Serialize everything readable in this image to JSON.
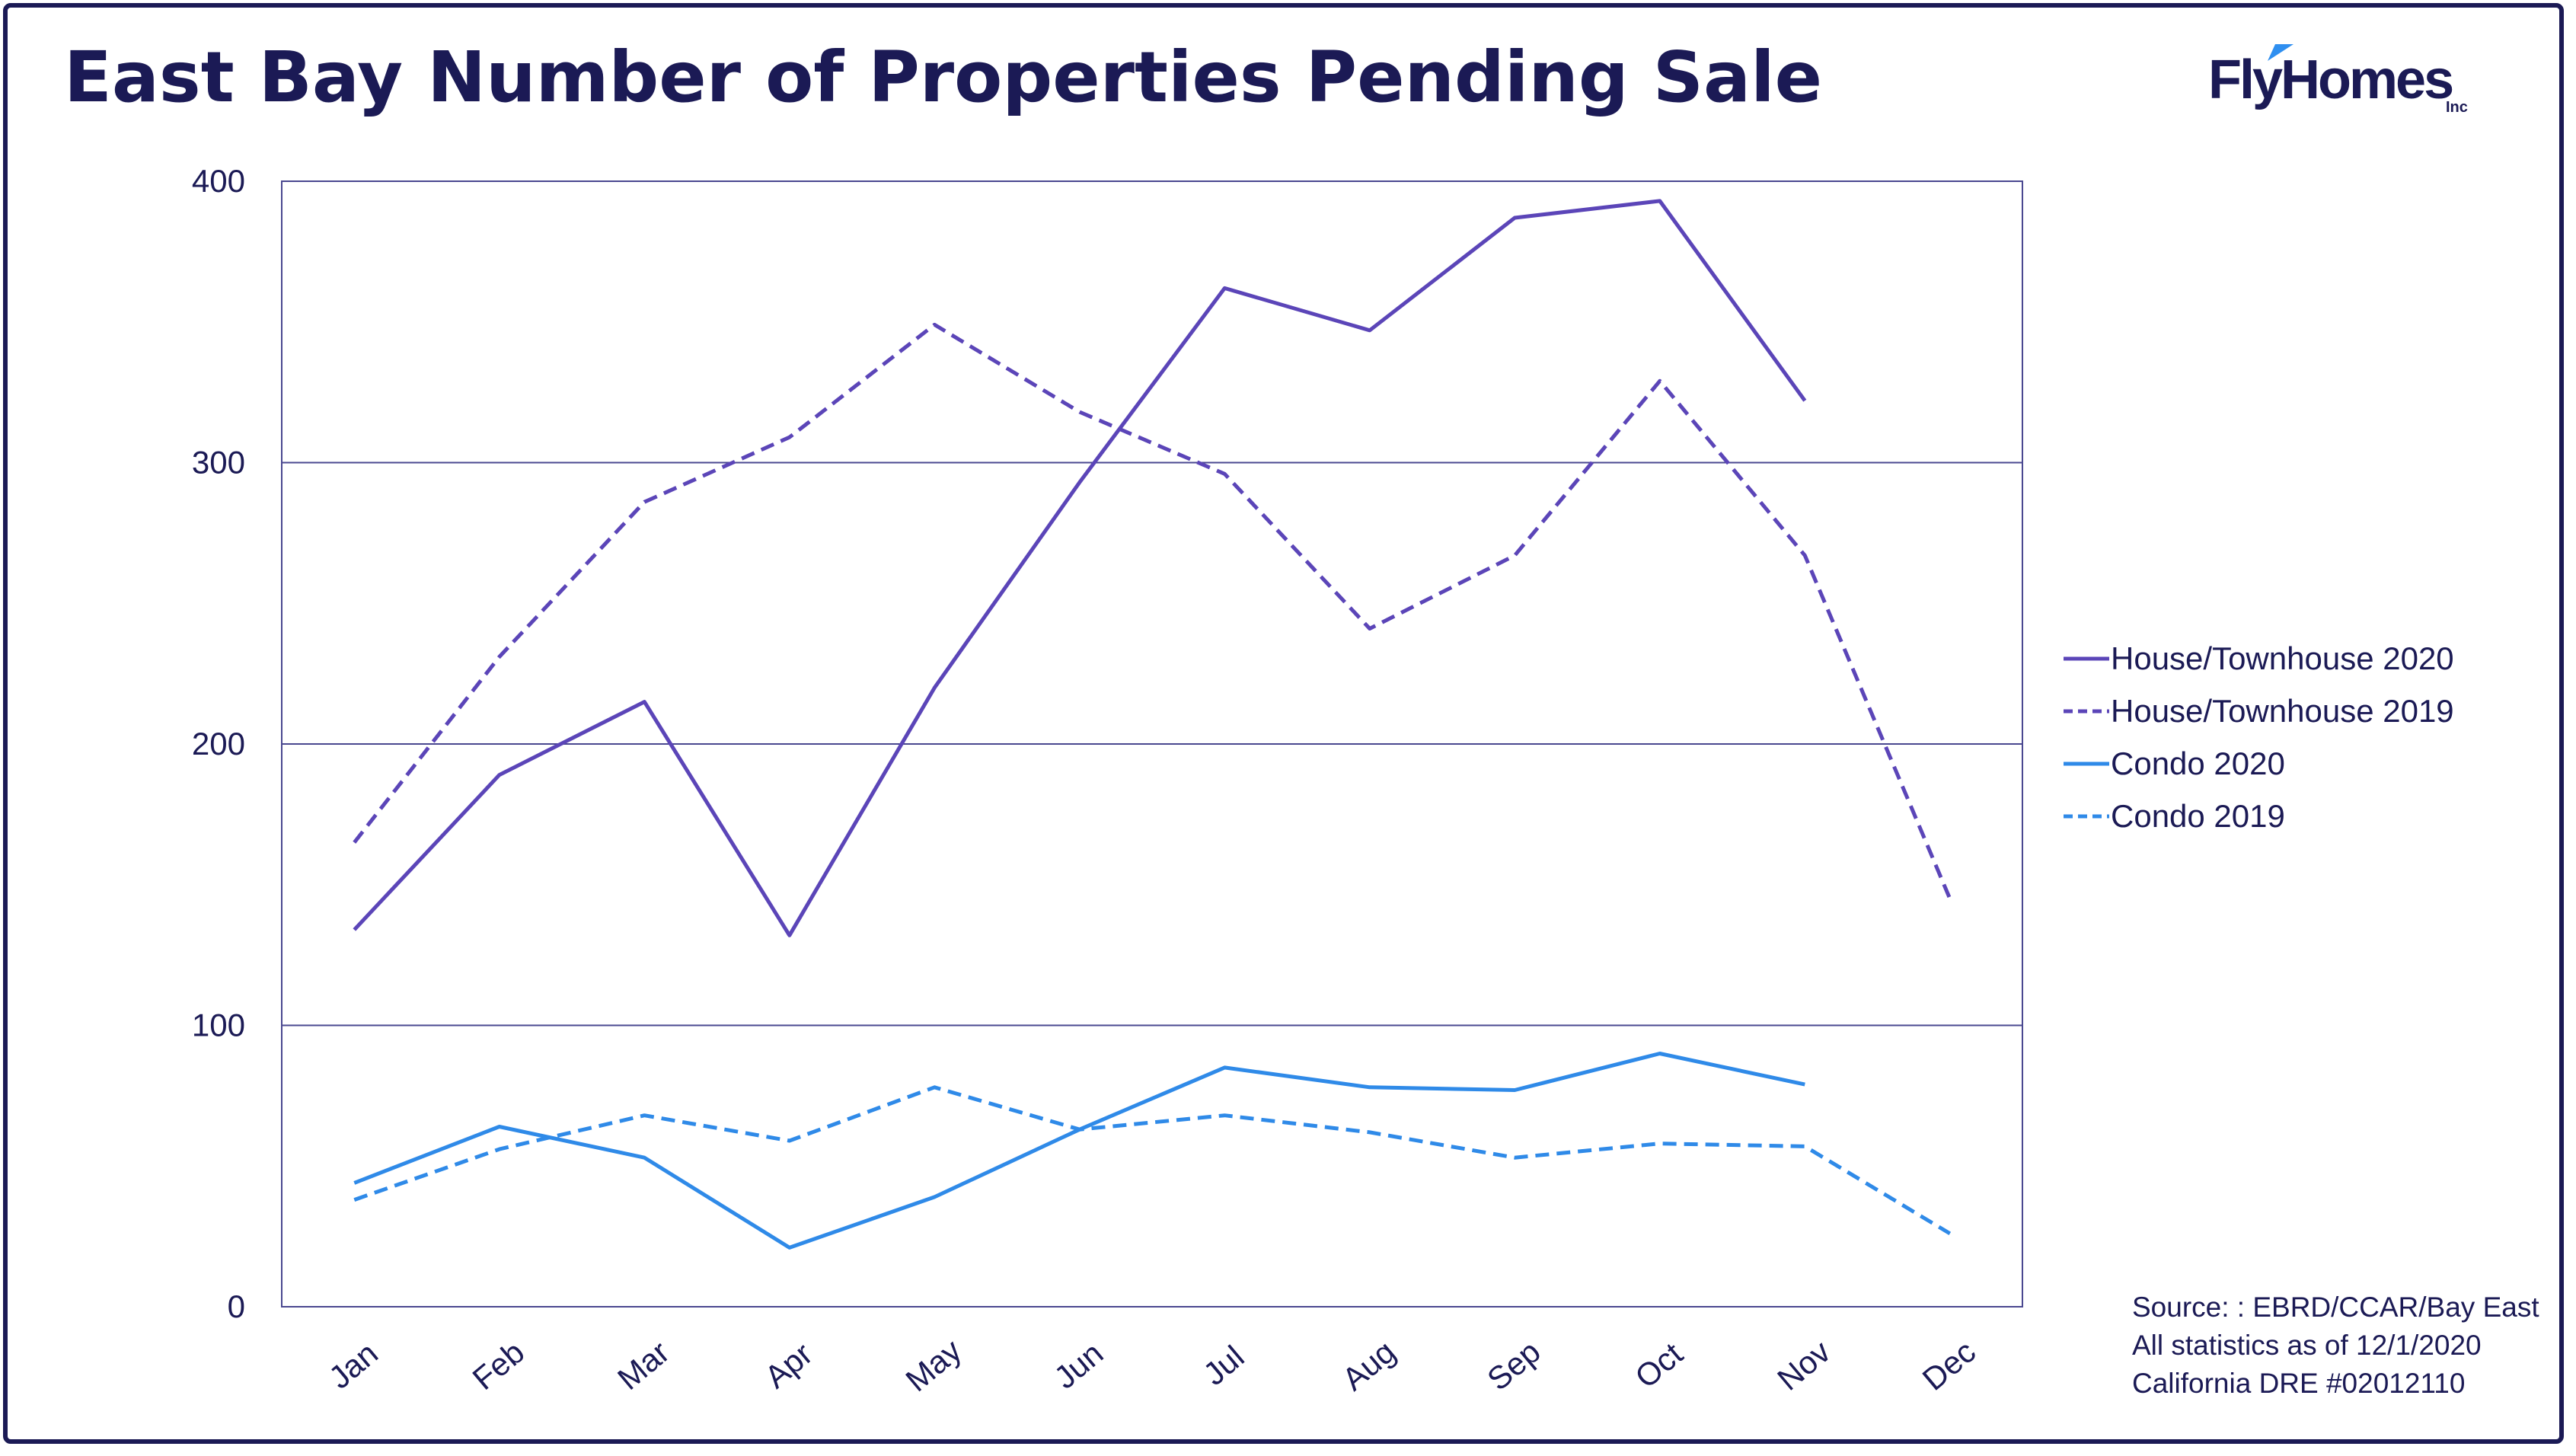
{
  "header": {
    "title": "East Bay Number of Properties Pending Sale"
  },
  "logo": {
    "text": "FlyHomes",
    "suffix": "Inc",
    "mark_color": "#2f8ff0"
  },
  "source_note": [
    "Source: : EBRD/CCAR/Bay East",
    "All statistics as of 12/1/2020",
    "California DRE #02012110"
  ],
  "colors": {
    "house": "#5b45b8",
    "condo": "#2f8ae8",
    "text": "#1b1a55",
    "grid": "#4a4890"
  },
  "chart_data": {
    "type": "line",
    "title": "East Bay Number of Properties Pending Sale",
    "xlabel": "",
    "ylabel": "",
    "categories": [
      "Jan",
      "Feb",
      "Mar",
      "Apr",
      "May",
      "Jun",
      "Jul",
      "Aug",
      "Sep",
      "Oct",
      "Nov",
      "Dec"
    ],
    "ylim": [
      0,
      400
    ],
    "yticks": [
      0,
      100,
      200,
      300,
      400
    ],
    "grid": true,
    "legend_position": "right",
    "series": [
      {
        "name": "House/Townhouse 2020",
        "color": "#5b45b8",
        "dash": "solid",
        "values": [
          134,
          189,
          215,
          132,
          220,
          293,
          362,
          347,
          387,
          393,
          322,
          null
        ]
      },
      {
        "name": "House/Townhouse 2019",
        "color": "#5b45b8",
        "dash": "dashed",
        "values": [
          165,
          231,
          286,
          309,
          349,
          318,
          296,
          241,
          267,
          329,
          267,
          145
        ]
      },
      {
        "name": "Condo 2020",
        "color": "#2f8ae8",
        "dash": "solid",
        "values": [
          44,
          64,
          53,
          21,
          39,
          63,
          85,
          78,
          77,
          90,
          79,
          null
        ]
      },
      {
        "name": "Condo 2019",
        "color": "#2f8ae8",
        "dash": "dashed",
        "values": [
          38,
          56,
          68,
          59,
          78,
          63,
          68,
          62,
          53,
          58,
          57,
          26
        ]
      }
    ]
  }
}
